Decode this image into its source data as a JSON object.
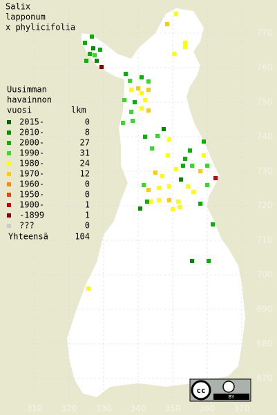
{
  "title": [
    "Salix",
    "lapponum",
    "x phylicifolia"
  ],
  "legend": {
    "header": [
      "Uusimman",
      "havainnon",
      "vuosi"
    ],
    "count_header": "lkm",
    "rows": [
      {
        "label": "2015-",
        "count": 0,
        "color": "#006400"
      },
      {
        "label": "2010-",
        "count": 8,
        "color": "#008c00"
      },
      {
        "label": "2000-",
        "count": 27,
        "color": "#00b400"
      },
      {
        "label": "1990-",
        "count": 31,
        "color": "#33dd22"
      },
      {
        "label": "1980-",
        "count": 24,
        "color": "#ffff00"
      },
      {
        "label": "1970-",
        "count": 12,
        "color": "#ffcc00"
      },
      {
        "label": "1960-",
        "count": 0,
        "color": "#ff8800"
      },
      {
        "label": "1950-",
        "count": 0,
        "color": "#ee4400"
      },
      {
        "label": "1900-",
        "count": 1,
        "color": "#cc0000"
      },
      {
        "label": "-1899",
        "count": 1,
        "color": "#880000"
      },
      {
        "label": "???",
        "count": 0,
        "color": "#cccccc"
      }
    ],
    "total_label": "Yhteensä",
    "total": 104
  },
  "xticks": [
    310,
    320,
    330,
    340,
    350,
    360,
    370
  ],
  "yticks": [
    670,
    680,
    690,
    700,
    710,
    720,
    730,
    740,
    750,
    760,
    770
  ],
  "license_badge": "BY",
  "observations": [
    [
      326.6,
      769.0,
      2
    ],
    [
      324.6,
      767.2,
      2
    ],
    [
      327.0,
      765.6,
      1
    ],
    [
      329.0,
      765.2,
      2
    ],
    [
      326.0,
      764.0,
      2
    ],
    [
      327.4,
      763.6,
      3
    ],
    [
      325.0,
      762.0,
      2
    ],
    [
      328.0,
      762.0,
      1
    ],
    [
      329.4,
      760.2,
      9
    ],
    [
      351.0,
      775.6,
      4
    ],
    [
      348.4,
      772.6,
      5
    ],
    [
      353.6,
      767.2,
      4
    ],
    [
      353.6,
      766.0,
      4
    ],
    [
      350.4,
      764.0,
      4
    ],
    [
      336.4,
      758.2,
      2
    ],
    [
      337.6,
      756.2,
      3
    ],
    [
      341.0,
      757.2,
      2
    ],
    [
      343.0,
      756.0,
      3
    ],
    [
      340.0,
      754.0,
      5
    ],
    [
      341.0,
      752.6,
      4
    ],
    [
      338.0,
      753.6,
      4
    ],
    [
      343.0,
      753.6,
      5
    ],
    [
      336.0,
      750.6,
      3
    ],
    [
      339.0,
      750.0,
      2
    ],
    [
      341.0,
      748.2,
      4
    ],
    [
      343.0,
      747.6,
      5
    ],
    [
      342.0,
      750.6,
      4
    ],
    [
      338.0,
      747.2,
      3
    ],
    [
      335.6,
      744.0,
      3
    ],
    [
      338.4,
      744.6,
      3
    ],
    [
      347.4,
      742.2,
      1
    ],
    [
      342.0,
      740.0,
      2
    ],
    [
      345.6,
      740.2,
      3
    ],
    [
      349.0,
      739.2,
      4
    ],
    [
      344.0,
      736.6,
      3
    ],
    [
      348.6,
      734.6,
      4
    ],
    [
      355.0,
      736.0,
      2
    ],
    [
      353.6,
      733.6,
      2
    ],
    [
      353.0,
      731.6,
      2
    ],
    [
      351.0,
      730.6,
      4
    ],
    [
      355.6,
      731.6,
      3
    ],
    [
      359.0,
      738.6,
      2
    ],
    [
      359.0,
      734.6,
      4
    ],
    [
      360.0,
      731.6,
      3
    ],
    [
      358.0,
      730.0,
      5
    ],
    [
      362.4,
      728.0,
      8
    ],
    [
      352.4,
      727.6,
      1
    ],
    [
      354.4,
      725.6,
      4
    ],
    [
      345.0,
      729.6,
      5
    ],
    [
      347.0,
      728.6,
      4
    ],
    [
      341.6,
      726.0,
      3
    ],
    [
      343.0,
      724.6,
      5
    ],
    [
      346.0,
      725.2,
      4
    ],
    [
      349.0,
      725.6,
      4
    ],
    [
      343.6,
      721.2,
      4
    ],
    [
      346.0,
      721.6,
      4
    ],
    [
      349.0,
      721.6,
      5
    ],
    [
      340.6,
      719.2,
      1
    ],
    [
      342.6,
      721.2,
      2
    ],
    [
      351.6,
      721.2,
      4
    ],
    [
      350.0,
      719.0,
      4
    ],
    [
      352.0,
      719.6,
      4
    ],
    [
      360.0,
      726.0,
      3
    ],
    [
      356.0,
      724.0,
      4
    ],
    [
      358.0,
      720.6,
      2
    ],
    [
      361.6,
      714.6,
      2
    ],
    [
      355.6,
      704.0,
      1
    ],
    [
      360.4,
      704.0,
      2
    ],
    [
      325.6,
      696.0,
      4
    ]
  ]
}
